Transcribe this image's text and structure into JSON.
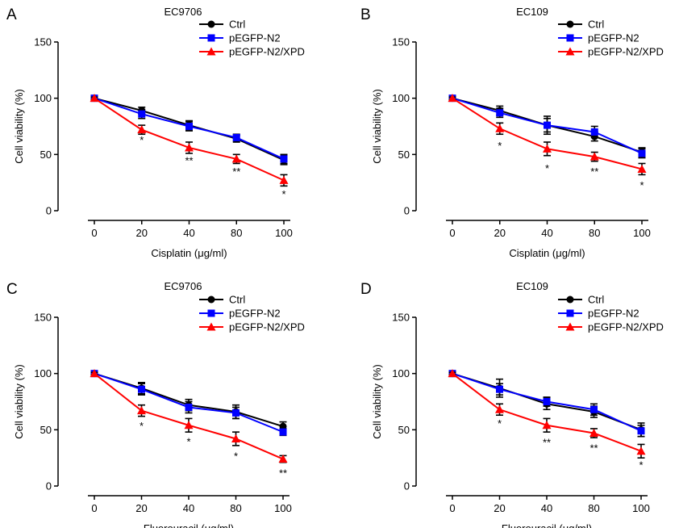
{
  "chart_data": [
    {
      "panel": "A",
      "title": "EC9706",
      "type": "line",
      "xlabel": "Cisplatin (μg/ml)",
      "ylabel": "Cell viability (%)",
      "categories": [
        "0",
        "20",
        "40",
        "80",
        "100"
      ],
      "ylim": [
        0,
        150
      ],
      "yticks": [
        0,
        50,
        100,
        150
      ],
      "legend_position": "top-right",
      "series": [
        {
          "name": "Ctrl",
          "color": "#000000",
          "marker": "circle",
          "values": [
            100,
            89,
            76,
            64,
            45
          ],
          "errors": [
            1,
            3,
            4,
            3,
            4
          ]
        },
        {
          "name": "pEGFP-N2",
          "color": "#0000ff",
          "marker": "square",
          "values": [
            100,
            86,
            75,
            65,
            46
          ],
          "errors": [
            1,
            4,
            4,
            3,
            4
          ]
        },
        {
          "name": "pEGFP-N2/XPD",
          "color": "#ff0000",
          "marker": "triangle",
          "values": [
            100,
            72,
            56,
            46,
            27
          ],
          "errors": [
            1,
            4,
            5,
            4,
            5
          ]
        }
      ],
      "significance": [
        {
          "x": "20",
          "label": "*",
          "y": 63
        },
        {
          "x": "40",
          "label": "**",
          "y": 45
        },
        {
          "x": "80",
          "label": "**",
          "y": 35
        },
        {
          "x": "100",
          "label": "*",
          "y": 15
        }
      ]
    },
    {
      "panel": "B",
      "title": "EC109",
      "type": "line",
      "xlabel": "Cisplatin (μg/ml)",
      "ylabel": "Cell viability (%)",
      "categories": [
        "0",
        "20",
        "40",
        "80",
        "100"
      ],
      "ylim": [
        0,
        150
      ],
      "yticks": [
        0,
        50,
        100,
        150
      ],
      "legend_position": "top-right",
      "series": [
        {
          "name": "Ctrl",
          "color": "#000000",
          "marker": "circle",
          "values": [
            100,
            89,
            76,
            66,
            52
          ],
          "errors": [
            1,
            4,
            6,
            4,
            4
          ]
        },
        {
          "name": "pEGFP-N2",
          "color": "#0000ff",
          "marker": "square",
          "values": [
            100,
            87,
            76,
            70,
            51
          ],
          "errors": [
            1,
            4,
            8,
            5,
            4
          ]
        },
        {
          "name": "pEGFP-N2/XPD",
          "color": "#ff0000",
          "marker": "triangle",
          "values": [
            100,
            73,
            55,
            48,
            37
          ],
          "errors": [
            1,
            5,
            6,
            4,
            5
          ]
        }
      ],
      "significance": [
        {
          "x": "20",
          "label": "*",
          "y": 58
        },
        {
          "x": "40",
          "label": "*",
          "y": 38
        },
        {
          "x": "80",
          "label": "**",
          "y": 35
        },
        {
          "x": "100",
          "label": "*",
          "y": 23
        }
      ]
    },
    {
      "panel": "C",
      "title": "EC9706",
      "type": "line",
      "xlabel": "Fluorouracil (μg/ml)",
      "ylabel": "Cell viability (%)",
      "categories": [
        "0",
        "20",
        "40",
        "80",
        "100"
      ],
      "ylim": [
        0,
        150
      ],
      "yticks": [
        0,
        50,
        100,
        150
      ],
      "legend_position": "top-right",
      "series": [
        {
          "name": "Ctrl",
          "color": "#000000",
          "marker": "circle",
          "values": [
            100,
            87,
            72,
            66,
            53
          ],
          "errors": [
            1,
            5,
            5,
            6,
            4
          ]
        },
        {
          "name": "pEGFP-N2",
          "color": "#0000ff",
          "marker": "square",
          "values": [
            100,
            86,
            70,
            65,
            48
          ],
          "errors": [
            1,
            5,
            5,
            5,
            3
          ]
        },
        {
          "name": "pEGFP-N2/XPD",
          "color": "#ff0000",
          "marker": "triangle",
          "values": [
            100,
            67,
            54,
            42,
            24
          ],
          "errors": [
            1,
            5,
            6,
            6,
            3
          ]
        }
      ],
      "significance": [
        {
          "x": "20",
          "label": "*",
          "y": 54
        },
        {
          "x": "40",
          "label": "*",
          "y": 40
        },
        {
          "x": "80",
          "label": "*",
          "y": 27
        },
        {
          "x": "100",
          "label": "**",
          "y": 12
        }
      ]
    },
    {
      "panel": "D",
      "title": "EC109",
      "type": "line",
      "xlabel": "Fluorouracil (μg/ml)",
      "ylabel": "Cell viability (%)",
      "categories": [
        "0",
        "20",
        "40",
        "80",
        "100"
      ],
      "ylim": [
        0,
        150
      ],
      "yticks": [
        0,
        50,
        100,
        150
      ],
      "legend_position": "top-right",
      "series": [
        {
          "name": "Ctrl",
          "color": "#000000",
          "marker": "circle",
          "values": [
            100,
            87,
            73,
            66,
            50
          ],
          "errors": [
            1,
            8,
            5,
            5,
            6
          ]
        },
        {
          "name": "pEGFP-N2",
          "color": "#0000ff",
          "marker": "square",
          "values": [
            100,
            86,
            75,
            68,
            49
          ],
          "errors": [
            1,
            5,
            4,
            5,
            5
          ]
        },
        {
          "name": "pEGFP-N2/XPD",
          "color": "#ff0000",
          "marker": "triangle",
          "values": [
            100,
            68,
            54,
            47,
            31
          ],
          "errors": [
            1,
            5,
            6,
            4,
            6
          ]
        }
      ],
      "significance": [
        {
          "x": "20",
          "label": "*",
          "y": 56
        },
        {
          "x": "40",
          "label": "**",
          "y": 39
        },
        {
          "x": "80",
          "label": "**",
          "y": 34
        },
        {
          "x": "100",
          "label": "*",
          "y": 19
        }
      ]
    }
  ]
}
